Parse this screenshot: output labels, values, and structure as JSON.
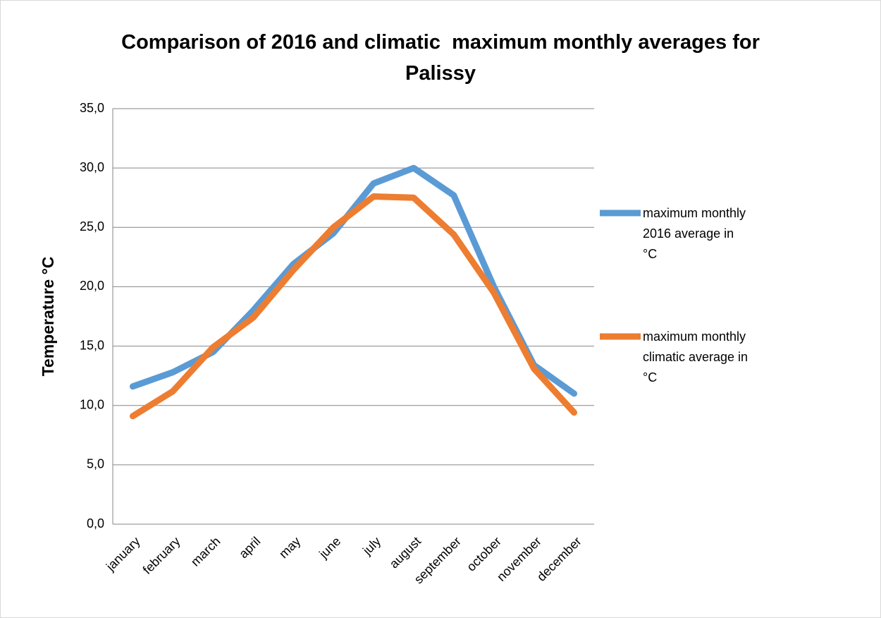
{
  "chart_data": {
    "type": "line",
    "title": "Comparison of 2016 and climatic  maximum monthly averages for Palissy",
    "y_label": "Temperature °C",
    "categories": [
      "january",
      "february",
      "march",
      "april",
      "may",
      "june",
      "july",
      "august",
      "september",
      "october",
      "november",
      "december"
    ],
    "series": [
      {
        "name": "maximum monthly 2016 average in °C",
        "color": "#5b9bd5",
        "values": [
          11.6,
          12.8,
          14.5,
          18.0,
          21.9,
          24.5,
          28.7,
          30.0,
          27.7,
          20.0,
          13.4,
          11.0
        ]
      },
      {
        "name": "maximum monthly climatic average in °C",
        "color": "#ed7d31",
        "values": [
          9.1,
          11.2,
          14.9,
          17.4,
          21.4,
          25.0,
          27.6,
          27.5,
          24.4,
          19.5,
          13.1,
          9.4
        ]
      }
    ],
    "ylim": [
      0,
      35
    ],
    "yticks": [
      {
        "value": 0,
        "label": "0,0"
      },
      {
        "value": 5,
        "label": "5,0"
      },
      {
        "value": 10,
        "label": "10,0"
      },
      {
        "value": 15,
        "label": "15,0"
      },
      {
        "value": 20,
        "label": "20,0"
      },
      {
        "value": 25,
        "label": "25,0"
      },
      {
        "value": 30,
        "label": "30,0"
      },
      {
        "value": 35,
        "label": "35,0"
      }
    ],
    "grid": true,
    "legend": "right"
  }
}
